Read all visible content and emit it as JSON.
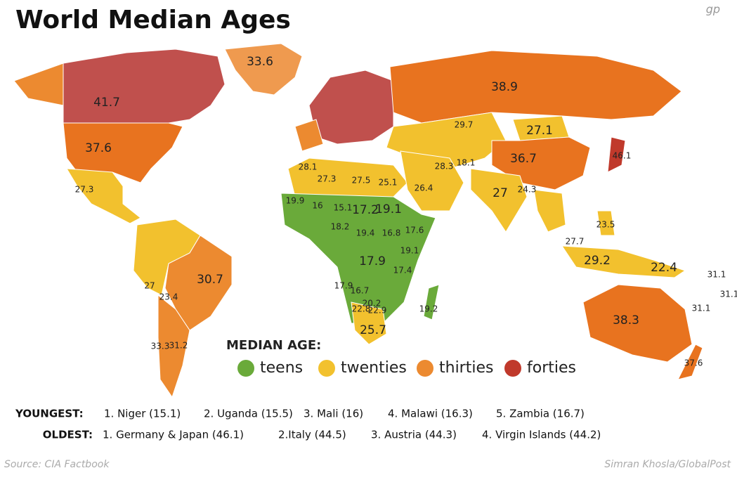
{
  "header": {
    "title": "World Median Ages",
    "logo": "gp"
  },
  "map_labels": [
    33.6,
    41.7,
    37.6,
    38.9,
    29.7,
    27.1,
    36.7,
    46.1,
    27.3,
    27.3,
    27.5,
    25.1,
    26.4,
    28.3,
    18.1,
    27,
    19.9,
    16,
    15.1,
    17.2,
    19.1,
    18.2,
    19.4,
    16.8,
    17.6,
    17.9,
    19.1,
    17.4,
    17.9,
    16.7,
    20.2,
    22.8,
    22.9,
    25.7,
    19.2,
    30.7,
    27,
    23.4,
    31.2,
    33.3,
    27.7,
    29.2,
    22.4,
    23.5,
    38.3,
    37.6,
    31.1,
    31.1,
    31.1,
    24.3,
    28.1
  ],
  "legend": {
    "title": "MEDIAN AGE:",
    "items": [
      {
        "name": "teens",
        "color": "#6aaa3a"
      },
      {
        "name": "twenties",
        "color": "#f2c12e"
      },
      {
        "name": "thirties",
        "color": "#ec8a30"
      },
      {
        "name": "forties",
        "color": "#c0392b"
      }
    ]
  },
  "youngest": {
    "label": "YOUNGEST:",
    "items": [
      "1. Niger (15.1)",
      "2. Uganda (15.5)",
      "3. Mali (16)",
      "4. Malawi (16.3)",
      "5. Zambia (16.7)"
    ]
  },
  "oldest": {
    "label": "OLDEST:",
    "items": [
      "1. Germany & Japan (46.1)",
      "2.Italy (44.5)",
      "3. Austria (44.3)",
      "4. Virgin Islands (44.2)"
    ]
  },
  "footer": {
    "source": "Source: CIA Factbook",
    "credit": "Simran Khosla/GlobalPost"
  }
}
